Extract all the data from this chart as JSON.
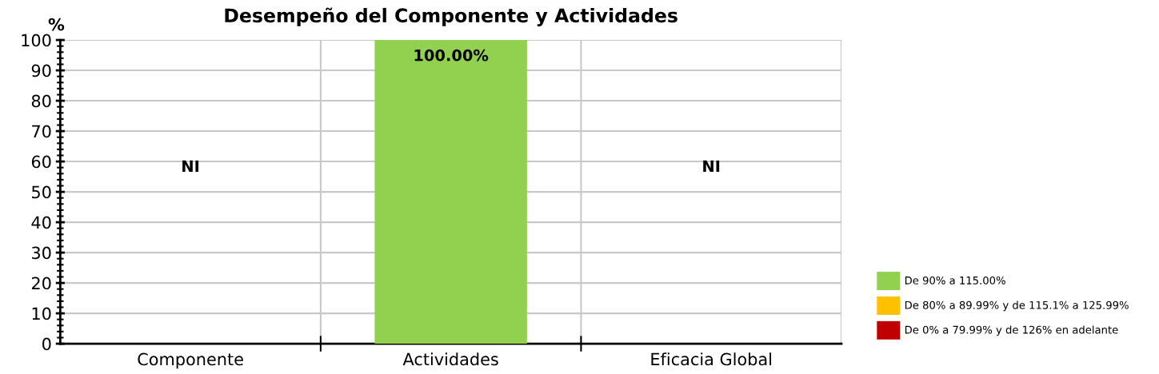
{
  "chart_data": {
    "type": "bar",
    "title": "Desempeño del Componente y Actividades",
    "ylabel": "%",
    "categories": [
      "Componente",
      "Actividades",
      "Eficacia Global"
    ],
    "series": [
      {
        "name": "De 90% a 115.00%",
        "color": "#92d050",
        "values": [
          null,
          100,
          null
        ],
        "value_labels": [
          "NI",
          "100.00%",
          "NI"
        ]
      },
      {
        "name": "De 80% a 89.99% y de 115.1% a 125.99%",
        "color": "#ffc000",
        "values": [
          null,
          null,
          null
        ]
      },
      {
        "name": "De 0% a 79.99% y de 126% en adelante",
        "color": "#c00000",
        "values": [
          null,
          null,
          null
        ]
      }
    ],
    "ylim": [
      0,
      100
    ],
    "yticks": [
      0,
      10,
      20,
      30,
      40,
      50,
      60,
      70,
      80,
      90,
      100
    ],
    "grid": true,
    "legend": "right"
  }
}
